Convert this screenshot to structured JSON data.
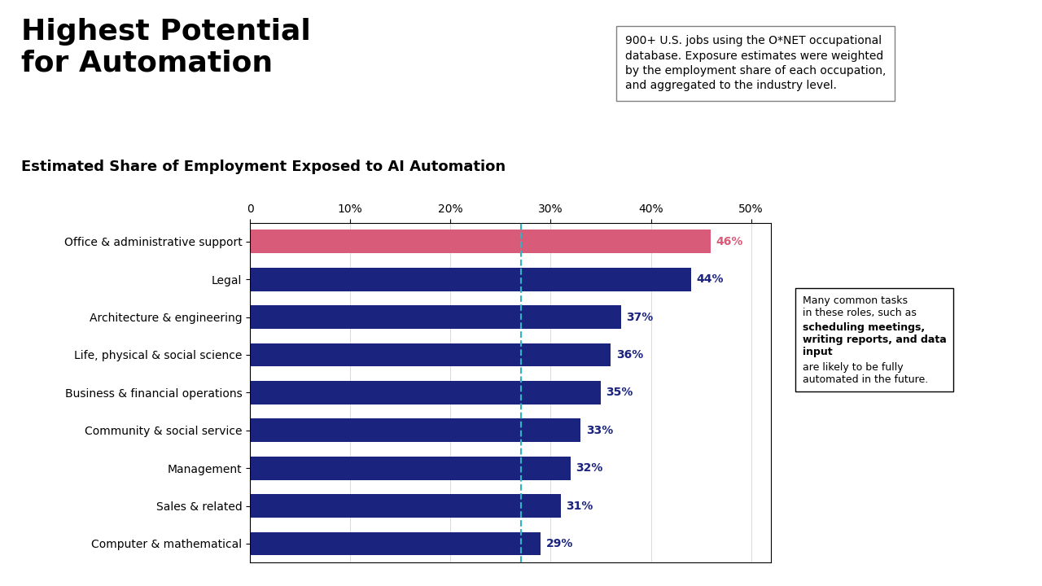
{
  "chart_data": {
    "type": "bar",
    "orientation": "horizontal",
    "title": "Highest Potential\nfor Automation",
    "subtitle": "Estimated Share of Employment Exposed to AI Automation",
    "note": "900+ U.S. jobs using the O*NET occupational\ndatabase. Exposure estimates were weighted\nby the employment share of each occupation,\nand aggregated to the industry level.",
    "annotations": [
      "Many common tasks\nin these roles, such as",
      "scheduling meetings,\nwriting reports, and data\ninput",
      "are likely to be fully\nautomated in the future."
    ],
    "categories": [
      "Office & administrative support",
      "Legal",
      "Architecture & engineering",
      "Life, physical & social science",
      "Business & financial operations",
      "Community & social service",
      "Management",
      "Sales & related",
      "Computer & mathematical"
    ],
    "values": [
      46,
      44,
      37,
      36,
      35,
      33,
      32,
      31,
      29
    ],
    "value_labels": [
      "46%",
      "44%",
      "37%",
      "36%",
      "35%",
      "33%",
      "32%",
      "31%",
      "29%"
    ],
    "data_labels": true,
    "colors": [
      "#D95B7A",
      "#1A237E",
      "#1A237E",
      "#1A237E",
      "#1A237E",
      "#1A237E",
      "#1A237E",
      "#1A237E",
      "#1A237E"
    ],
    "xlim": [
      0,
      52
    ],
    "xticks": [
      0,
      {
        "value": 10,
        "label": "10%"
      },
      {
        "value": 20,
        "label": "20%"
      },
      {
        "value": 30,
        "label": "30%"
      },
      {
        "value": 40,
        "label": "40%"
      },
      {
        "value": 50,
        "label": "50%"
      }
    ],
    "grid": true,
    "reference_line": {
      "value": 27,
      "color": "#29B6C5",
      "line_style": "dashed"
    }
  }
}
